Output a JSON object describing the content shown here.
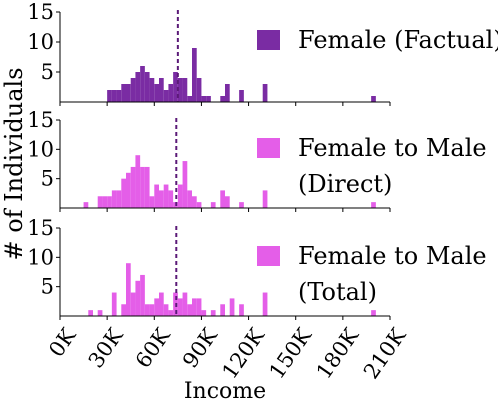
{
  "chart_data": {
    "type": "bar",
    "ylabel": "# of Individuals",
    "xlabel": "Income",
    "x_ticks": [
      "0K",
      "30K",
      "60K",
      "90K",
      "120K",
      "150K",
      "180K",
      "210K"
    ],
    "x_tick_values": [
      0,
      30000,
      60000,
      90000,
      120000,
      150000,
      180000,
      210000
    ],
    "xlim": [
      0,
      210000
    ],
    "y_ticks": [
      "5",
      "10",
      "15"
    ],
    "y_tick_values": [
      5,
      10,
      15
    ],
    "ylim": [
      0,
      15
    ],
    "bin_width": 3000,
    "panels": [
      {
        "legend": [
          "Female (Factual)"
        ],
        "color": "#7a2ca3",
        "mean_line": 75000,
        "bins": [
          {
            "x": 30000,
            "count": 2
          },
          {
            "x": 33000,
            "count": 2
          },
          {
            "x": 36000,
            "count": 2
          },
          {
            "x": 39000,
            "count": 3
          },
          {
            "x": 42000,
            "count": 3
          },
          {
            "x": 45000,
            "count": 4
          },
          {
            "x": 48000,
            "count": 5
          },
          {
            "x": 51000,
            "count": 6
          },
          {
            "x": 54000,
            "count": 5
          },
          {
            "x": 57000,
            "count": 4
          },
          {
            "x": 60000,
            "count": 3
          },
          {
            "x": 63000,
            "count": 4
          },
          {
            "x": 66000,
            "count": 2
          },
          {
            "x": 69000,
            "count": 3
          },
          {
            "x": 72000,
            "count": 5
          },
          {
            "x": 75000,
            "count": 4
          },
          {
            "x": 78000,
            "count": 4
          },
          {
            "x": 81000,
            "count": 1
          },
          {
            "x": 84000,
            "count": 9
          },
          {
            "x": 87000,
            "count": 4
          },
          {
            "x": 90000,
            "count": 1
          },
          {
            "x": 93000,
            "count": 1
          },
          {
            "x": 102000,
            "count": 1
          },
          {
            "x": 105000,
            "count": 3
          },
          {
            "x": 114000,
            "count": 2
          },
          {
            "x": 129000,
            "count": 3
          },
          {
            "x": 198000,
            "count": 1
          }
        ]
      },
      {
        "legend": [
          "Female to Male",
          "(Direct)"
        ],
        "color": "#e45ee8",
        "mean_line": 74000,
        "bins": [
          {
            "x": 15000,
            "count": 1
          },
          {
            "x": 24000,
            "count": 2
          },
          {
            "x": 27000,
            "count": 2
          },
          {
            "x": 30000,
            "count": 2
          },
          {
            "x": 33000,
            "count": 3
          },
          {
            "x": 36000,
            "count": 3
          },
          {
            "x": 39000,
            "count": 5
          },
          {
            "x": 42000,
            "count": 6
          },
          {
            "x": 45000,
            "count": 7
          },
          {
            "x": 48000,
            "count": 9
          },
          {
            "x": 51000,
            "count": 7
          },
          {
            "x": 54000,
            "count": 7
          },
          {
            "x": 57000,
            "count": 2
          },
          {
            "x": 60000,
            "count": 4
          },
          {
            "x": 63000,
            "count": 3
          },
          {
            "x": 66000,
            "count": 4
          },
          {
            "x": 69000,
            "count": 3
          },
          {
            "x": 72000,
            "count": 1
          },
          {
            "x": 75000,
            "count": 4
          },
          {
            "x": 78000,
            "count": 8
          },
          {
            "x": 81000,
            "count": 3
          },
          {
            "x": 84000,
            "count": 2
          },
          {
            "x": 87000,
            "count": 1
          },
          {
            "x": 96000,
            "count": 1
          },
          {
            "x": 102000,
            "count": 3
          },
          {
            "x": 105000,
            "count": 2
          },
          {
            "x": 114000,
            "count": 1
          },
          {
            "x": 129000,
            "count": 3
          },
          {
            "x": 198000,
            "count": 1
          }
        ]
      },
      {
        "legend": [
          "Female to Male",
          "(Total)"
        ],
        "color": "#e45ee8",
        "mean_line": 74000,
        "bins": [
          {
            "x": 18000,
            "count": 1
          },
          {
            "x": 24000,
            "count": 1
          },
          {
            "x": 33000,
            "count": 4
          },
          {
            "x": 39000,
            "count": 2
          },
          {
            "x": 42000,
            "count": 9
          },
          {
            "x": 45000,
            "count": 4
          },
          {
            "x": 48000,
            "count": 6
          },
          {
            "x": 51000,
            "count": 7
          },
          {
            "x": 54000,
            "count": 2
          },
          {
            "x": 57000,
            "count": 2
          },
          {
            "x": 60000,
            "count": 3
          },
          {
            "x": 63000,
            "count": 4
          },
          {
            "x": 66000,
            "count": 2
          },
          {
            "x": 69000,
            "count": 1
          },
          {
            "x": 72000,
            "count": 4
          },
          {
            "x": 75000,
            "count": 3
          },
          {
            "x": 78000,
            "count": 4
          },
          {
            "x": 81000,
            "count": 2
          },
          {
            "x": 84000,
            "count": 3
          },
          {
            "x": 87000,
            "count": 3
          },
          {
            "x": 90000,
            "count": 1
          },
          {
            "x": 96000,
            "count": 1
          },
          {
            "x": 102000,
            "count": 2
          },
          {
            "x": 108000,
            "count": 3
          },
          {
            "x": 114000,
            "count": 2
          },
          {
            "x": 129000,
            "count": 4
          },
          {
            "x": 198000,
            "count": 1
          }
        ]
      }
    ]
  }
}
